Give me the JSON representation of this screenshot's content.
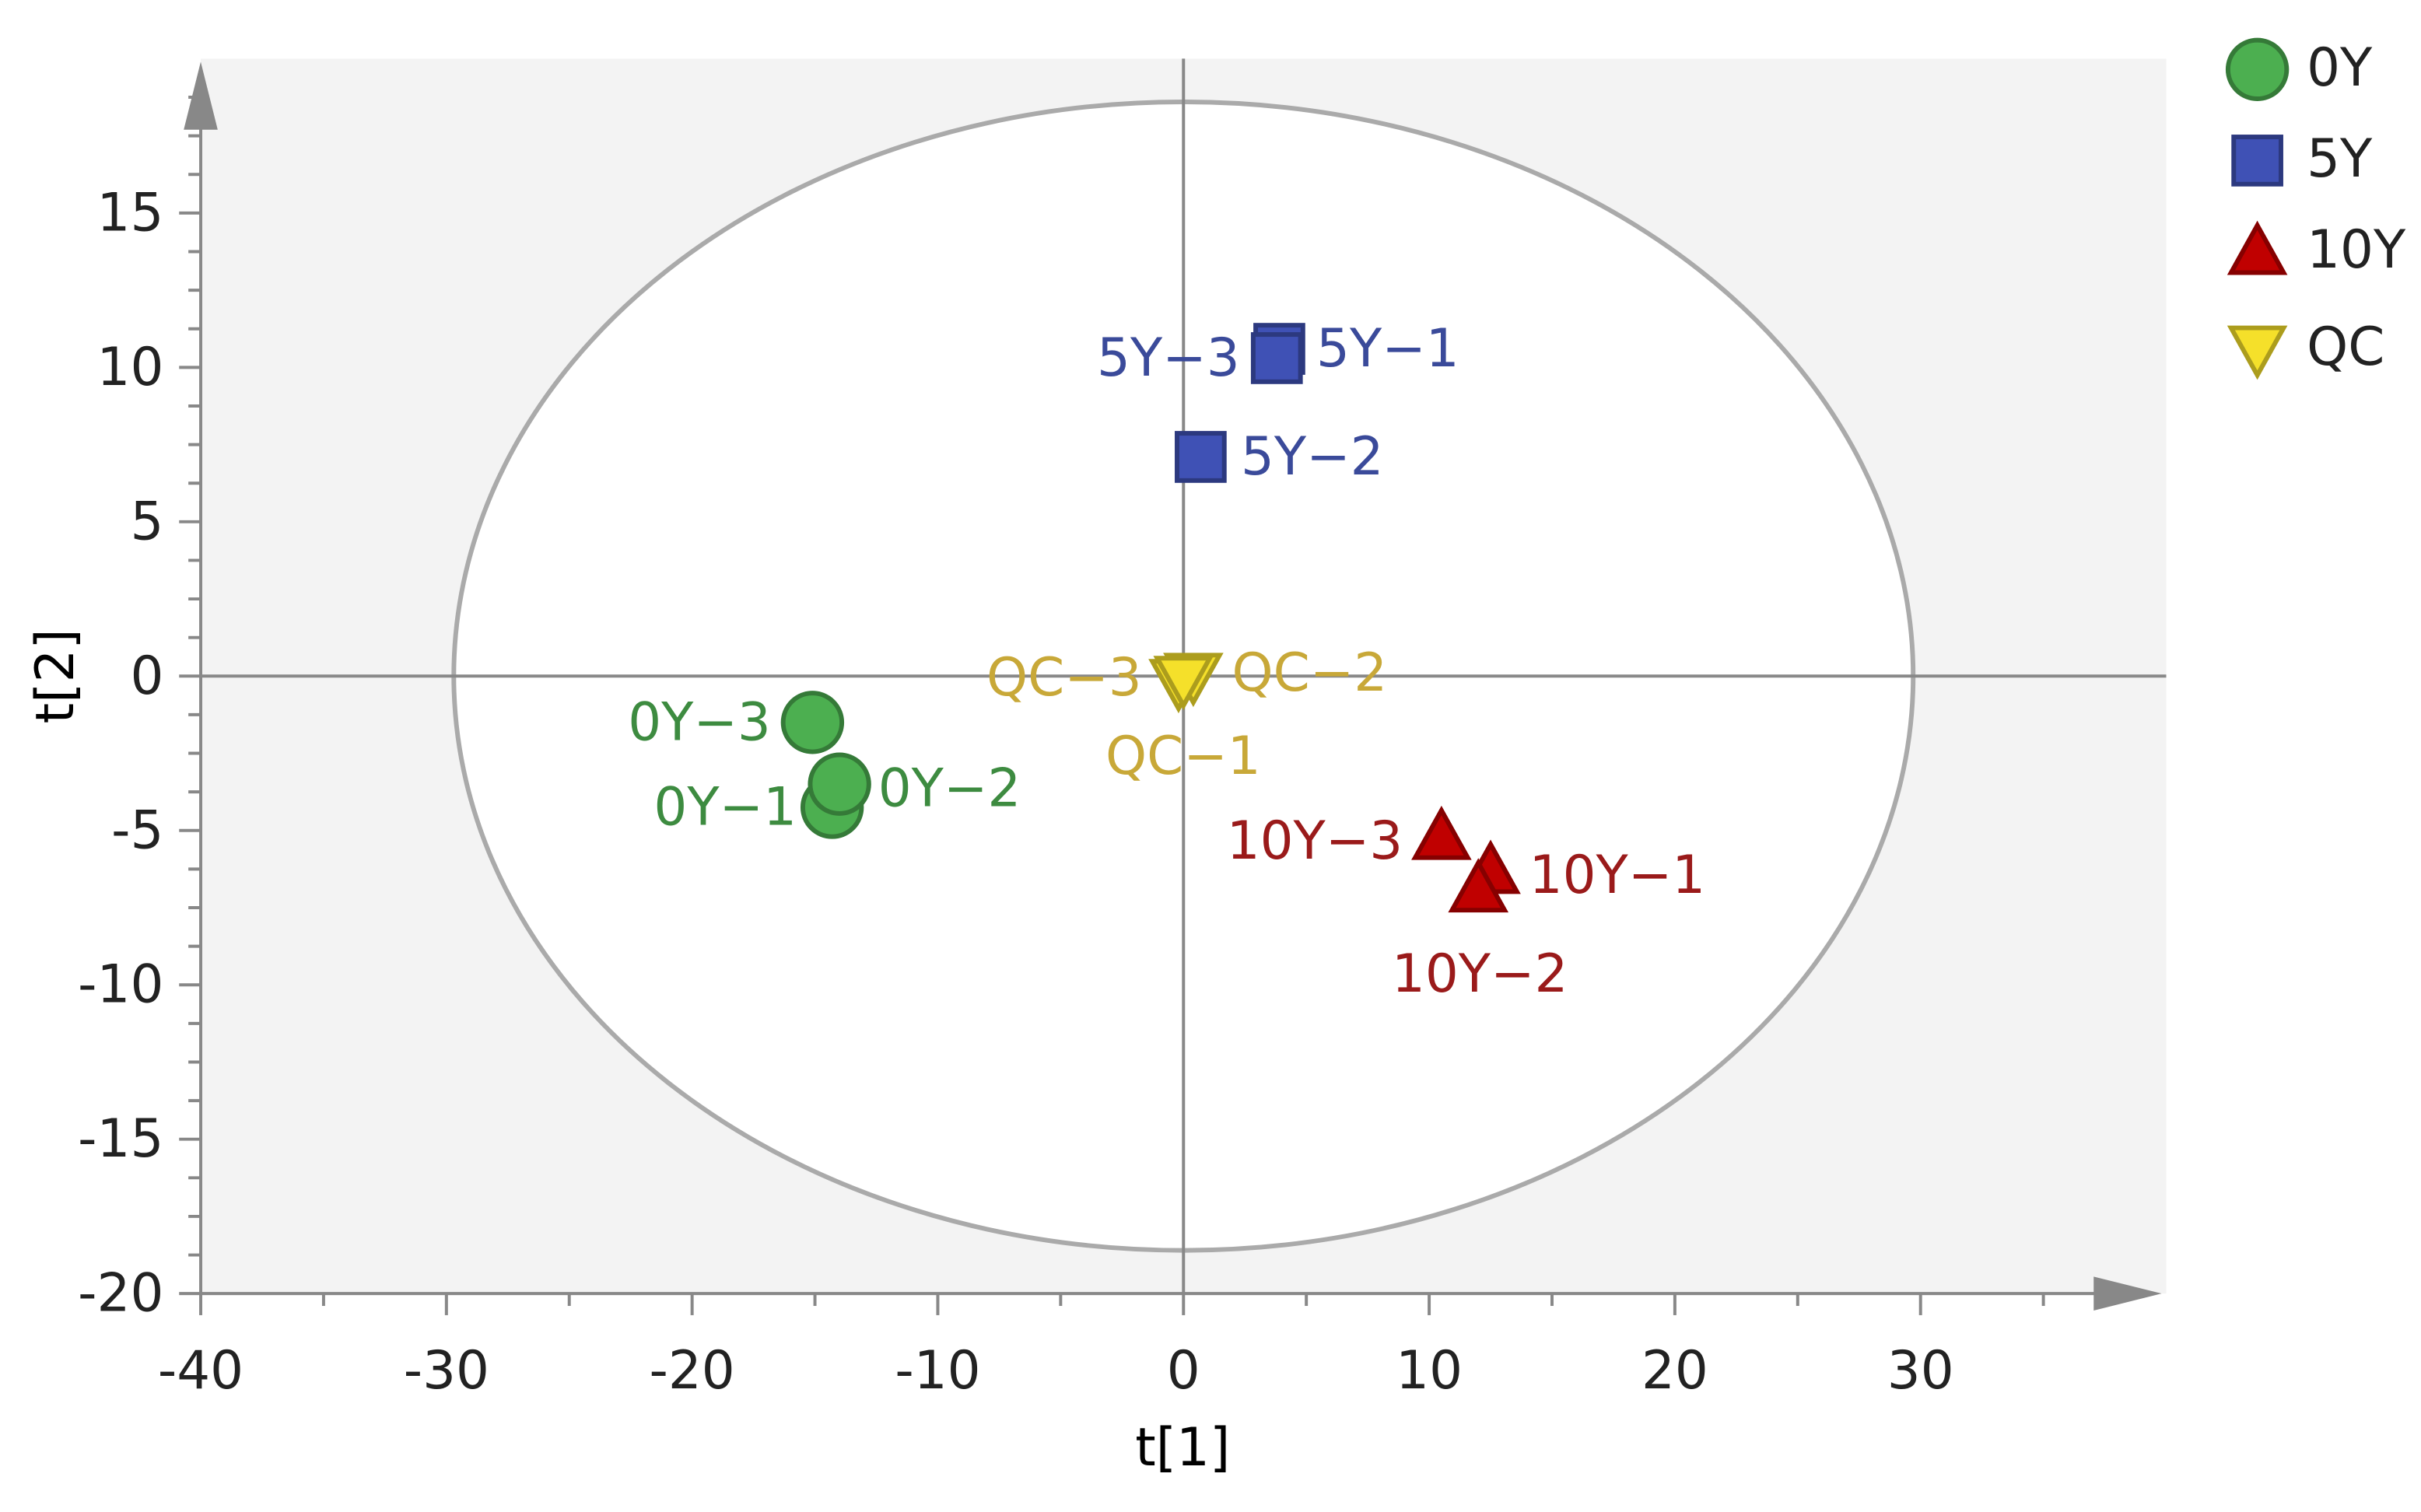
{
  "chart_data": {
    "type": "scatter",
    "x_label": "t[1]",
    "y_label": "t[2]",
    "xlim": [
      -40,
      40
    ],
    "ylim": [
      -20,
      20
    ],
    "xticks": [
      -40,
      -30,
      -20,
      -10,
      0,
      10,
      20,
      30
    ],
    "yticks": [
      -20,
      -15,
      -10,
      -5,
      0,
      5,
      10,
      15
    ],
    "ellipse_radii": [
      29.7,
      18.6
    ],
    "series": [
      {
        "name": "0Y",
        "marker": "circle",
        "color": "#4caf50",
        "label_color": "#3d8b40",
        "labels": [
          "0Y−1",
          "0Y−2",
          "0Y−3"
        ],
        "x": [
          -14.3,
          -14.0,
          -15.1
        ],
        "y": [
          -4.25,
          -3.5,
          -1.5
        ]
      },
      {
        "name": "5Y",
        "marker": "square",
        "color": "#3f51b5",
        "label_color": "#3a4a9a",
        "labels": [
          "5Y−1",
          "5Y−2",
          "5Y−3"
        ],
        "x": [
          3.9,
          0.7,
          3.8
        ],
        "y": [
          10.6,
          7.1,
          10.3
        ]
      },
      {
        "name": "10Y",
        "marker": "triangle",
        "color": "#c00000",
        "label_color": "#9a1a1a",
        "labels": [
          "10Y−1",
          "10Y−2",
          "10Y−3"
        ],
        "x": [
          12.5,
          12.0,
          10.5
        ],
        "y": [
          -6.3,
          -6.9,
          -5.2
        ]
      },
      {
        "name": "QC",
        "marker": "triangle-down",
        "color": "#f5e02a",
        "label_color": "#c8a838",
        "labels": [
          "QC−1",
          "QC−2",
          "QC−3"
        ],
        "x": [
          -0.2,
          0.4,
          0.0
        ],
        "y": [
          -0.2,
          0.0,
          -0.1
        ]
      }
    ]
  }
}
